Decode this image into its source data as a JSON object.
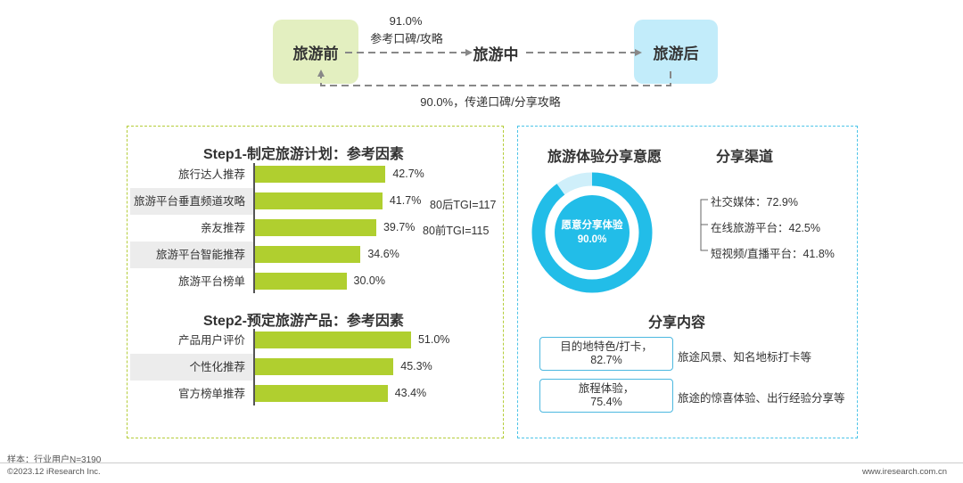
{
  "flow": {
    "stage_before": "旅游前",
    "stage_during": "旅游中",
    "stage_after": "旅游后",
    "top_pct": "91.0%",
    "top_desc": "参考口碑/攻略",
    "bottom_text": "90.0%，传递口碑/分享攻略"
  },
  "step1": {
    "title": "Step1-制定旅游计划：参考因素",
    "tgi_80_after": "80后TGI=117",
    "tgi_80_before": "80前TGI=115"
  },
  "step2": {
    "title": "Step2-预定旅游产品：参考因素"
  },
  "chart_data": [
    {
      "type": "bar",
      "orientation": "horizontal",
      "title": "Step1-制定旅游计划：参考因素",
      "categories": [
        "旅行达人推荐",
        "旅游平台垂直频道攻略",
        "亲友推荐",
        "旅游平台智能推荐",
        "旅游平台榜单"
      ],
      "values": [
        42.7,
        41.7,
        39.7,
        34.6,
        30.0
      ],
      "labels": [
        "42.7%",
        "41.7%",
        "39.7%",
        "34.6%",
        "30.0%"
      ],
      "color": "#b0cf2f"
    },
    {
      "type": "bar",
      "orientation": "horizontal",
      "title": "Step2-预定旅游产品：参考因素",
      "categories": [
        "产品用户评价",
        "个性化推荐",
        "官方榜单推荐"
      ],
      "values": [
        51.0,
        45.3,
        43.4
      ],
      "labels": [
        "51.0%",
        "45.3%",
        "43.4%"
      ],
      "color": "#b0cf2f"
    },
    {
      "type": "pie",
      "title": "旅游体验分享意愿",
      "center_label": "愿意分享体验",
      "center_value": "90.0%",
      "values": [
        90.0,
        10.0
      ],
      "color": "#22bde8"
    }
  ],
  "share": {
    "willing_title": "旅游体验分享意愿",
    "channel_title": "分享渠道",
    "channels": [
      "社交媒体：72.9%",
      "在线旅游平台：42.5%",
      "短视频/直播平台：41.8%"
    ],
    "content_title": "分享内容",
    "contents": [
      {
        "box_line1": "目的地特色/打卡，",
        "box_line2": "82.7%",
        "desc": "旅途风景、知名地标打卡等"
      },
      {
        "box_line1": "旅程体验，",
        "box_line2": "75.4%",
        "desc": "旅途的惊喜体验、出行经验分享等"
      }
    ]
  },
  "footer": {
    "sample": "样本：行业用户N=3190",
    "copyright": "©2023.12 iResearch Inc.",
    "website": "www.iresearch.com.cn"
  }
}
